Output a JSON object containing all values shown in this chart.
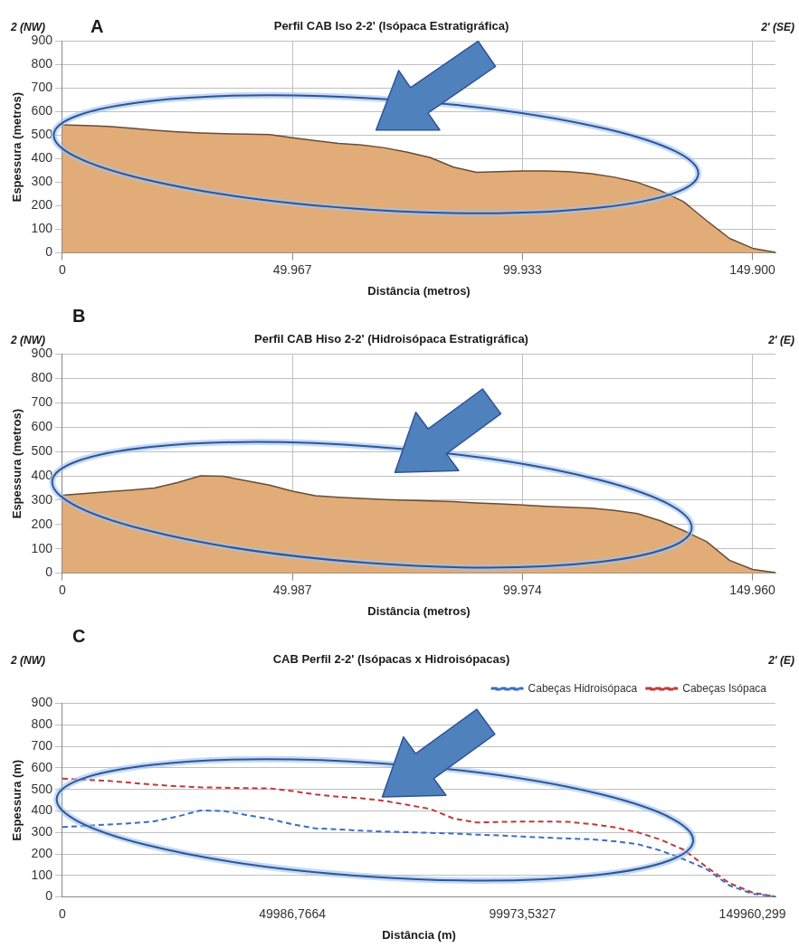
{
  "chart_data": [
    {
      "type": "area",
      "title": "Perfil CAB Iso 2-2' (Isópaca Estratigráfica)",
      "xlabel": "Distância (metros)",
      "ylabel": "Espessura (metros)",
      "annotations": [
        "A",
        "2 (NW)",
        "2' (SE)"
      ],
      "categories": [
        "0",
        null,
        null,
        null,
        null,
        null,
        null,
        null,
        null,
        null,
        "49.967",
        null,
        null,
        null,
        null,
        null,
        null,
        null,
        null,
        null,
        "99.933",
        null,
        null,
        null,
        null,
        null,
        null,
        null,
        null,
        null,
        "149.900",
        null
      ],
      "values": [
        545,
        542,
        538,
        530,
        522,
        515,
        510,
        507,
        505,
        503,
        490,
        477,
        466,
        459,
        447,
        428,
        405,
        365,
        343,
        346,
        348,
        348,
        346,
        337,
        322,
        300,
        265,
        218,
        138,
        62,
        20,
        2
      ],
      "color": "#e2ac78",
      "ylim": [
        0,
        900
      ],
      "yticks": [
        0,
        100,
        200,
        300,
        400,
        500,
        600,
        700,
        800,
        900
      ],
      "grid": true,
      "legend": false,
      "marker": "none",
      "line_style": "solid"
    },
    {
      "type": "area",
      "title": "Perfil CAB Hiso 2-2' (Hidroisópaca Estratigráfica)",
      "xlabel": "Distância (metros)",
      "ylabel": "Espessura (metros)",
      "annotations": [
        "B",
        "2 (NW)",
        "2' (E)"
      ],
      "categories": [
        "0",
        null,
        null,
        null,
        null,
        null,
        null,
        null,
        null,
        null,
        "49.987",
        null,
        null,
        null,
        null,
        null,
        null,
        null,
        null,
        null,
        "99.974",
        null,
        null,
        null,
        null,
        null,
        null,
        null,
        null,
        null,
        "149.960",
        null
      ],
      "values": [
        320,
        328,
        335,
        342,
        350,
        372,
        400,
        398,
        380,
        362,
        337,
        318,
        312,
        307,
        303,
        300,
        297,
        294,
        289,
        285,
        280,
        275,
        271,
        267,
        258,
        245,
        215,
        175,
        130,
        53,
        15,
        2
      ],
      "color": "#e2ac78",
      "ylim": [
        0,
        900
      ],
      "yticks": [
        0,
        100,
        200,
        300,
        400,
        500,
        600,
        700,
        800,
        900
      ],
      "grid": true,
      "legend": false,
      "marker": "none",
      "line_style": "solid"
    },
    {
      "type": "line",
      "title": "CAB Perfil 2-2' (Isópacas x Hidroisópacas)",
      "xlabel": "Distância (m)",
      "ylabel": "Espessura (m)",
      "annotations": [
        "C",
        "2 (NW)",
        "2' (E)"
      ],
      "categories": [
        "0",
        null,
        null,
        null,
        null,
        null,
        null,
        null,
        null,
        null,
        "49986,7664",
        null,
        null,
        null,
        null,
        null,
        null,
        null,
        null,
        null,
        "99973,5327",
        null,
        null,
        null,
        null,
        null,
        null,
        null,
        null,
        null,
        "149960,299",
        null
      ],
      "series": [
        {
          "name": "Cabeças Hidroisópaca",
          "color": "#3b6fc2",
          "values": [
            325,
            331,
            337,
            343,
            352,
            374,
            402,
            400,
            381,
            363,
            338,
            319,
            314,
            308,
            304,
            301,
            298,
            295,
            290,
            286,
            281,
            276,
            272,
            268,
            259,
            246,
            216,
            176,
            130,
            53,
            15,
            2
          ]
        },
        {
          "name": "Cabeças Isópaca",
          "color": "#c0393b",
          "values": [
            550,
            545,
            540,
            531,
            522,
            515,
            510,
            508,
            506,
            505,
            492,
            477,
            466,
            459,
            447,
            428,
            409,
            365,
            346,
            349,
            351,
            351,
            349,
            339,
            324,
            301,
            267,
            220,
            140,
            64,
            21,
            2
          ]
        }
      ],
      "ylim": [
        0,
        900
      ],
      "yticks": [
        0,
        100,
        200,
        300,
        400,
        500,
        600,
        700,
        800,
        900
      ],
      "grid": "y",
      "legend": "top right",
      "marker": "none",
      "line_style": "dashed"
    }
  ]
}
